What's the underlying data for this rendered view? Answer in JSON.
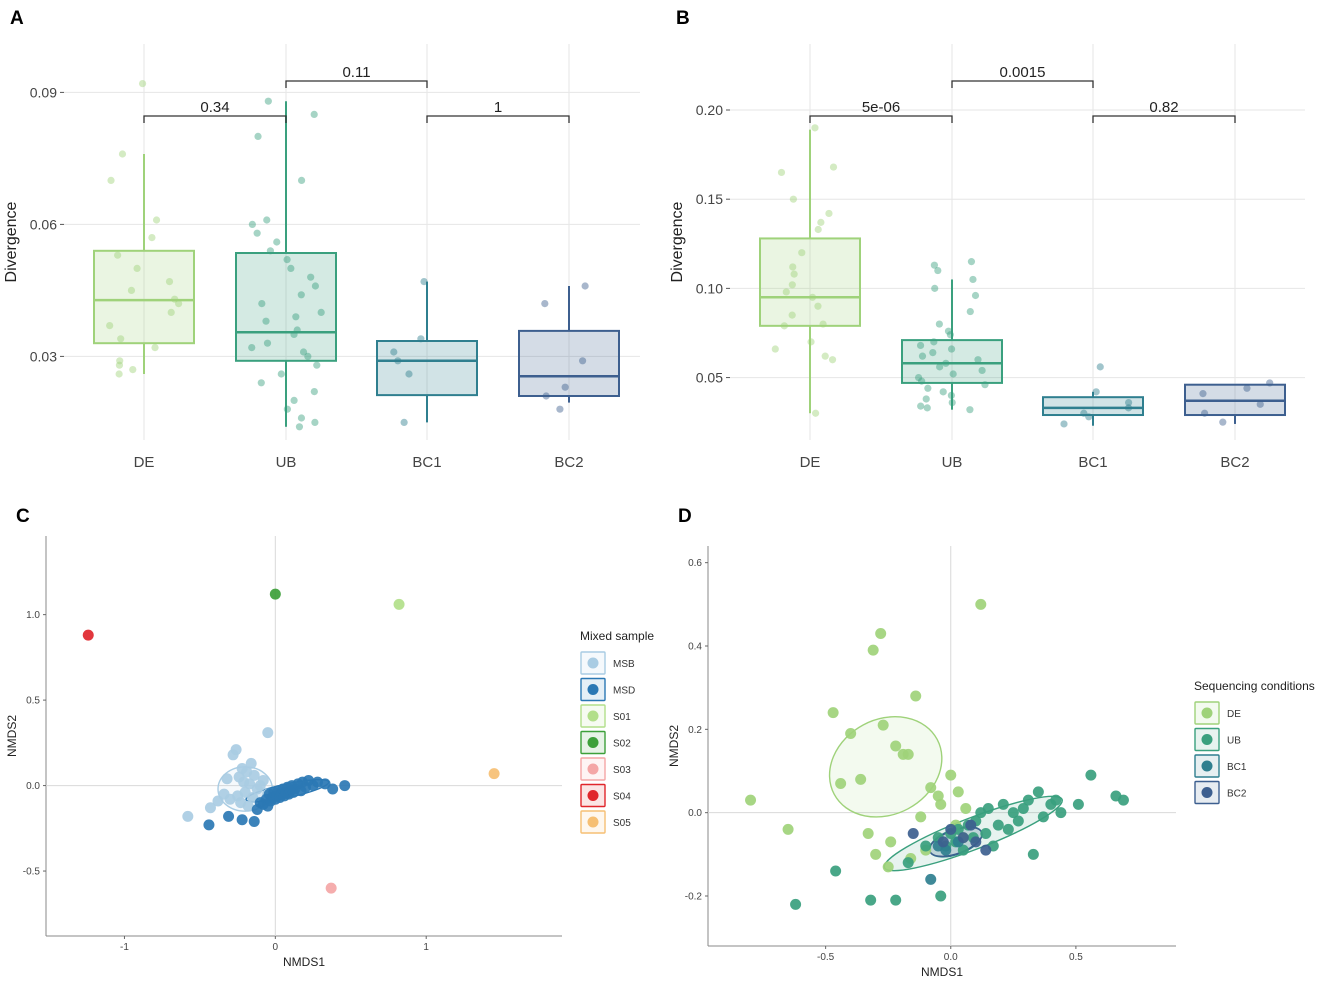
{
  "colors": {
    "DE": "#9fd27a",
    "UB": "#3aa07e",
    "BC1": "#2f7f8f",
    "BC2": "#3d5f8f",
    "MSB": "#a9cce3",
    "MSD": "#2b78b4",
    "S01": "#b2df8a",
    "S02": "#3da03a",
    "S03": "#f4a6a6",
    "S04": "#e0262c",
    "S05": "#f6bf73"
  },
  "chart_data": [
    {
      "panel": "A",
      "type": "box",
      "ylabel": "Divergence",
      "xlabel": "",
      "ylim": [
        0.011,
        0.101
      ],
      "yticks": [
        0.03,
        0.06,
        0.09
      ],
      "ytick_labels": [
        "0.03",
        "0.06",
        "0.09"
      ],
      "categories": [
        "DE",
        "UB",
        "BC1",
        "BC2"
      ],
      "boxes": [
        {
          "group": "DE",
          "q1": 0.033,
          "median": 0.0428,
          "q3": 0.054,
          "whisker_low": 0.026,
          "whisker_high": 0.076
        },
        {
          "group": "UB",
          "q1": 0.029,
          "median": 0.0355,
          "q3": 0.0535,
          "whisker_low": 0.014,
          "whisker_high": 0.088
        },
        {
          "group": "BC1",
          "q1": 0.0212,
          "median": 0.029,
          "q3": 0.0335,
          "whisker_low": 0.015,
          "whisker_high": 0.047
        },
        {
          "group": "BC2",
          "q1": 0.021,
          "median": 0.0255,
          "q3": 0.0358,
          "whisker_low": 0.0195,
          "whisker_high": 0.046
        }
      ],
      "points": [
        {
          "group": "DE",
          "values": [
            0.092,
            0.076,
            0.07,
            0.061,
            0.057,
            0.053,
            0.05,
            0.047,
            0.045,
            0.043,
            0.042,
            0.04,
            0.037,
            0.034,
            0.032,
            0.029,
            0.028,
            0.027,
            0.026
          ]
        },
        {
          "group": "UB",
          "values": [
            0.088,
            0.085,
            0.08,
            0.07,
            0.061,
            0.06,
            0.058,
            0.056,
            0.054,
            0.052,
            0.05,
            0.048,
            0.046,
            0.044,
            0.042,
            0.04,
            0.039,
            0.038,
            0.036,
            0.035,
            0.033,
            0.032,
            0.031,
            0.03,
            0.028,
            0.026,
            0.024,
            0.022,
            0.02,
            0.018,
            0.016,
            0.015,
            0.014
          ]
        },
        {
          "group": "BC1",
          "values": [
            0.047,
            0.034,
            0.031,
            0.029,
            0.026,
            0.015
          ]
        },
        {
          "group": "BC2",
          "values": [
            0.046,
            0.042,
            0.029,
            0.023,
            0.021,
            0.018
          ]
        }
      ],
      "comparisons": [
        {
          "from": "DE",
          "to": "UB",
          "label": "0.34",
          "level": 0
        },
        {
          "from": "UB",
          "to": "BC1",
          "label": "0.11",
          "level": 1
        },
        {
          "from": "BC1",
          "to": "BC2",
          "label": "1",
          "level": 0
        }
      ]
    },
    {
      "panel": "B",
      "type": "box",
      "ylabel": "Divergence",
      "xlabel": "",
      "ylim": [
        0.015,
        0.237
      ],
      "yticks": [
        0.05,
        0.1,
        0.15,
        0.2
      ],
      "ytick_labels": [
        "0.05",
        "0.10",
        "0.15",
        "0.20"
      ],
      "categories": [
        "DE",
        "UB",
        "BC1",
        "BC2"
      ],
      "boxes": [
        {
          "group": "DE",
          "q1": 0.079,
          "median": 0.095,
          "q3": 0.128,
          "whisker_low": 0.03,
          "whisker_high": 0.189
        },
        {
          "group": "UB",
          "q1": 0.047,
          "median": 0.058,
          "q3": 0.071,
          "whisker_low": 0.032,
          "whisker_high": 0.105
        },
        {
          "group": "BC1",
          "q1": 0.029,
          "median": 0.033,
          "q3": 0.039,
          "whisker_low": 0.023,
          "whisker_high": 0.042
        },
        {
          "group": "BC2",
          "q1": 0.029,
          "median": 0.037,
          "q3": 0.046,
          "whisker_low": 0.024,
          "whisker_high": 0.046
        }
      ],
      "points": [
        {
          "group": "DE",
          "values": [
            0.19,
            0.168,
            0.165,
            0.15,
            0.142,
            0.137,
            0.133,
            0.12,
            0.112,
            0.108,
            0.102,
            0.098,
            0.095,
            0.09,
            0.085,
            0.08,
            0.079,
            0.07,
            0.066,
            0.062,
            0.06,
            0.03
          ]
        },
        {
          "group": "UB",
          "values": [
            0.115,
            0.113,
            0.11,
            0.105,
            0.1,
            0.096,
            0.087,
            0.08,
            0.076,
            0.074,
            0.07,
            0.068,
            0.066,
            0.064,
            0.062,
            0.06,
            0.058,
            0.056,
            0.054,
            0.052,
            0.05,
            0.048,
            0.046,
            0.044,
            0.042,
            0.04,
            0.038,
            0.036,
            0.034,
            0.033,
            0.032
          ]
        },
        {
          "group": "BC1",
          "values": [
            0.056,
            0.042,
            0.036,
            0.033,
            0.03,
            0.028,
            0.024
          ]
        },
        {
          "group": "BC2",
          "values": [
            0.047,
            0.044,
            0.041,
            0.035,
            0.03,
            0.025
          ]
        }
      ],
      "comparisons": [
        {
          "from": "DE",
          "to": "UB",
          "label": "5e-06",
          "level": 0
        },
        {
          "from": "UB",
          "to": "BC1",
          "label": "0.0015",
          "level": 1
        },
        {
          "from": "BC1",
          "to": "BC2",
          "label": "0.82",
          "level": 0
        }
      ]
    },
    {
      "panel": "C",
      "type": "scatter",
      "xlabel": "NMDS1",
      "ylabel": "NMDS2",
      "xlim": [
        -1.52,
        1.9
      ],
      "ylim": [
        -0.88,
        1.46
      ],
      "xticks": [
        -1,
        0,
        1
      ],
      "xtick_labels": [
        "-1",
        "0",
        "1"
      ],
      "yticks": [
        -0.5,
        0.0,
        0.5,
        1.0
      ],
      "ytick_labels": [
        "-0.5",
        "0.0",
        "0.5",
        "1.0"
      ],
      "legend": {
        "title": "Mixed sample",
        "entries": [
          "MSB",
          "MSD",
          "S01",
          "S02",
          "S03",
          "S04",
          "S05"
        ],
        "position": "right"
      },
      "ellipses": [
        {
          "group": "MSB",
          "cx": -0.2,
          "cy": -0.02,
          "rx": 0.18,
          "ry": 0.13,
          "angle_deg": 0
        },
        {
          "group": "MSD",
          "cx": 0.08,
          "cy": -0.03,
          "rx": 0.28,
          "ry": 0.04,
          "angle_deg": 12
        }
      ],
      "series": [
        {
          "name": "MSB",
          "x": [
            -0.58,
            -0.43,
            -0.38,
            -0.34,
            -0.32,
            -0.3,
            -0.28,
            -0.26,
            -0.25,
            -0.24,
            -0.23,
            -0.22,
            -0.21,
            -0.2,
            -0.19,
            -0.18,
            -0.17,
            -0.16,
            -0.15,
            -0.14,
            -0.12,
            -0.1,
            -0.08,
            -0.05,
            -0.05
          ],
          "y": [
            -0.18,
            -0.13,
            -0.09,
            -0.05,
            0.04,
            -0.08,
            0.18,
            0.21,
            -0.06,
            0.05,
            -0.1,
            0.1,
            0.02,
            -0.04,
            0.08,
            -0.12,
            0.01,
            0.13,
            -0.07,
            0.06,
            -0.02,
            0.0,
            0.03,
            0.31,
            -0.05
          ]
        },
        {
          "name": "MSD",
          "x": [
            -0.44,
            -0.31,
            -0.22,
            -0.14,
            -0.12,
            -0.1,
            -0.08,
            -0.06,
            -0.05,
            -0.04,
            -0.03,
            -0.02,
            -0.01,
            0.0,
            0.01,
            0.02,
            0.03,
            0.04,
            0.05,
            0.06,
            0.07,
            0.08,
            0.09,
            0.1,
            0.11,
            0.12,
            0.13,
            0.15,
            0.17,
            0.18,
            0.2,
            0.22,
            0.25,
            0.28,
            0.33,
            0.38,
            0.46
          ],
          "y": [
            -0.23,
            -0.18,
            -0.2,
            -0.21,
            -0.14,
            -0.1,
            -0.11,
            -0.08,
            -0.12,
            -0.05,
            -0.09,
            -0.07,
            -0.04,
            -0.08,
            -0.06,
            -0.03,
            -0.07,
            -0.05,
            -0.02,
            -0.06,
            -0.04,
            -0.01,
            -0.05,
            -0.03,
            0.0,
            -0.04,
            -0.02,
            0.01,
            -0.03,
            0.02,
            -0.01,
            0.03,
            0.0,
            0.02,
            0.01,
            -0.02,
            0.0
          ]
        },
        {
          "name": "S01",
          "x": [
            0.82
          ],
          "y": [
            1.06
          ]
        },
        {
          "name": "S02",
          "x": [
            0.0
          ],
          "y": [
            1.12
          ]
        },
        {
          "name": "S03",
          "x": [
            0.37
          ],
          "y": [
            -0.6
          ]
        },
        {
          "name": "S04",
          "x": [
            -1.24
          ],
          "y": [
            0.88
          ]
        },
        {
          "name": "S05",
          "x": [
            1.45
          ],
          "y": [
            0.07
          ]
        }
      ]
    },
    {
      "panel": "D",
      "type": "scatter",
      "xlabel": "NMDS1",
      "ylabel": "NMDS2",
      "xlim": [
        -0.97,
        0.9
      ],
      "ylim": [
        -0.32,
        0.64
      ],
      "xticks": [
        -0.5,
        0.0,
        0.5
      ],
      "xtick_labels": [
        "-0.5",
        "0.0",
        "0.5"
      ],
      "yticks": [
        -0.2,
        0.0,
        0.2,
        0.4,
        0.6
      ],
      "ytick_labels": [
        "-0.2",
        "0.0",
        "0.2",
        "0.4",
        "0.6"
      ],
      "legend": {
        "title": "Sequencing conditions",
        "entries": [
          "DE",
          "UB",
          "BC1",
          "BC2"
        ],
        "position": "right"
      },
      "ellipses": [
        {
          "group": "DE",
          "cx": -0.26,
          "cy": 0.11,
          "rx": 0.19,
          "ry": 0.14,
          "angle_deg": -62
        },
        {
          "group": "UB",
          "cx": 0.09,
          "cy": -0.05,
          "rx": 0.38,
          "ry": 0.038,
          "angle_deg": 21
        },
        {
          "group": "BC1",
          "cx": 0.02,
          "cy": -0.07,
          "rx": 0.11,
          "ry": 0.03,
          "angle_deg": 20
        },
        {
          "group": "BC2",
          "cx": 0.02,
          "cy": -0.07,
          "rx": 0.11,
          "ry": 0.028,
          "angle_deg": 20
        }
      ],
      "series": [
        {
          "name": "DE",
          "x": [
            -0.8,
            -0.65,
            -0.47,
            -0.44,
            -0.4,
            -0.36,
            -0.33,
            -0.31,
            -0.3,
            -0.28,
            -0.27,
            -0.25,
            -0.24,
            -0.22,
            -0.19,
            -0.17,
            -0.16,
            -0.14,
            -0.12,
            -0.1,
            -0.08,
            -0.05,
            -0.04,
            0.0,
            0.02,
            0.03,
            0.05,
            0.06,
            0.12
          ],
          "y": [
            0.03,
            -0.04,
            0.24,
            0.07,
            0.19,
            0.08,
            -0.05,
            0.39,
            -0.1,
            0.43,
            0.21,
            -0.13,
            -0.07,
            0.16,
            0.14,
            0.14,
            -0.11,
            0.28,
            -0.01,
            -0.09,
            0.06,
            0.04,
            0.02,
            0.09,
            -0.03,
            0.05,
            -0.06,
            0.01,
            0.5
          ]
        },
        {
          "name": "UB",
          "x": [
            -0.62,
            -0.46,
            -0.32,
            -0.22,
            -0.17,
            -0.1,
            -0.05,
            -0.04,
            -0.02,
            0.0,
            0.02,
            0.03,
            0.05,
            0.07,
            0.09,
            0.1,
            0.12,
            0.14,
            0.15,
            0.17,
            0.19,
            0.21,
            0.23,
            0.25,
            0.27,
            0.29,
            0.31,
            0.33,
            0.35,
            0.37,
            0.4,
            0.42,
            0.44,
            0.51,
            0.56,
            0.66,
            0.69
          ],
          "y": [
            -0.22,
            -0.14,
            -0.21,
            -0.21,
            -0.12,
            -0.08,
            -0.06,
            -0.2,
            -0.08,
            -0.05,
            -0.07,
            -0.04,
            -0.09,
            -0.03,
            -0.06,
            -0.02,
            0.0,
            -0.05,
            0.01,
            -0.08,
            -0.03,
            0.02,
            -0.04,
            0.0,
            -0.02,
            0.01,
            0.03,
            -0.1,
            0.05,
            -0.01,
            0.02,
            0.03,
            0.0,
            0.02,
            0.09,
            0.04,
            0.03
          ]
        },
        {
          "name": "BC1",
          "x": [
            -0.08,
            -0.05,
            -0.02,
            0.03
          ],
          "y": [
            -0.16,
            -0.08,
            -0.09,
            -0.07
          ]
        },
        {
          "name": "BC2",
          "x": [
            -0.15,
            -0.03,
            0.0,
            0.05,
            0.08,
            0.1,
            0.14
          ],
          "y": [
            -0.05,
            -0.07,
            -0.04,
            -0.06,
            -0.03,
            -0.07,
            -0.09
          ]
        }
      ]
    }
  ],
  "panel_labels": [
    "A",
    "B",
    "C",
    "D"
  ]
}
